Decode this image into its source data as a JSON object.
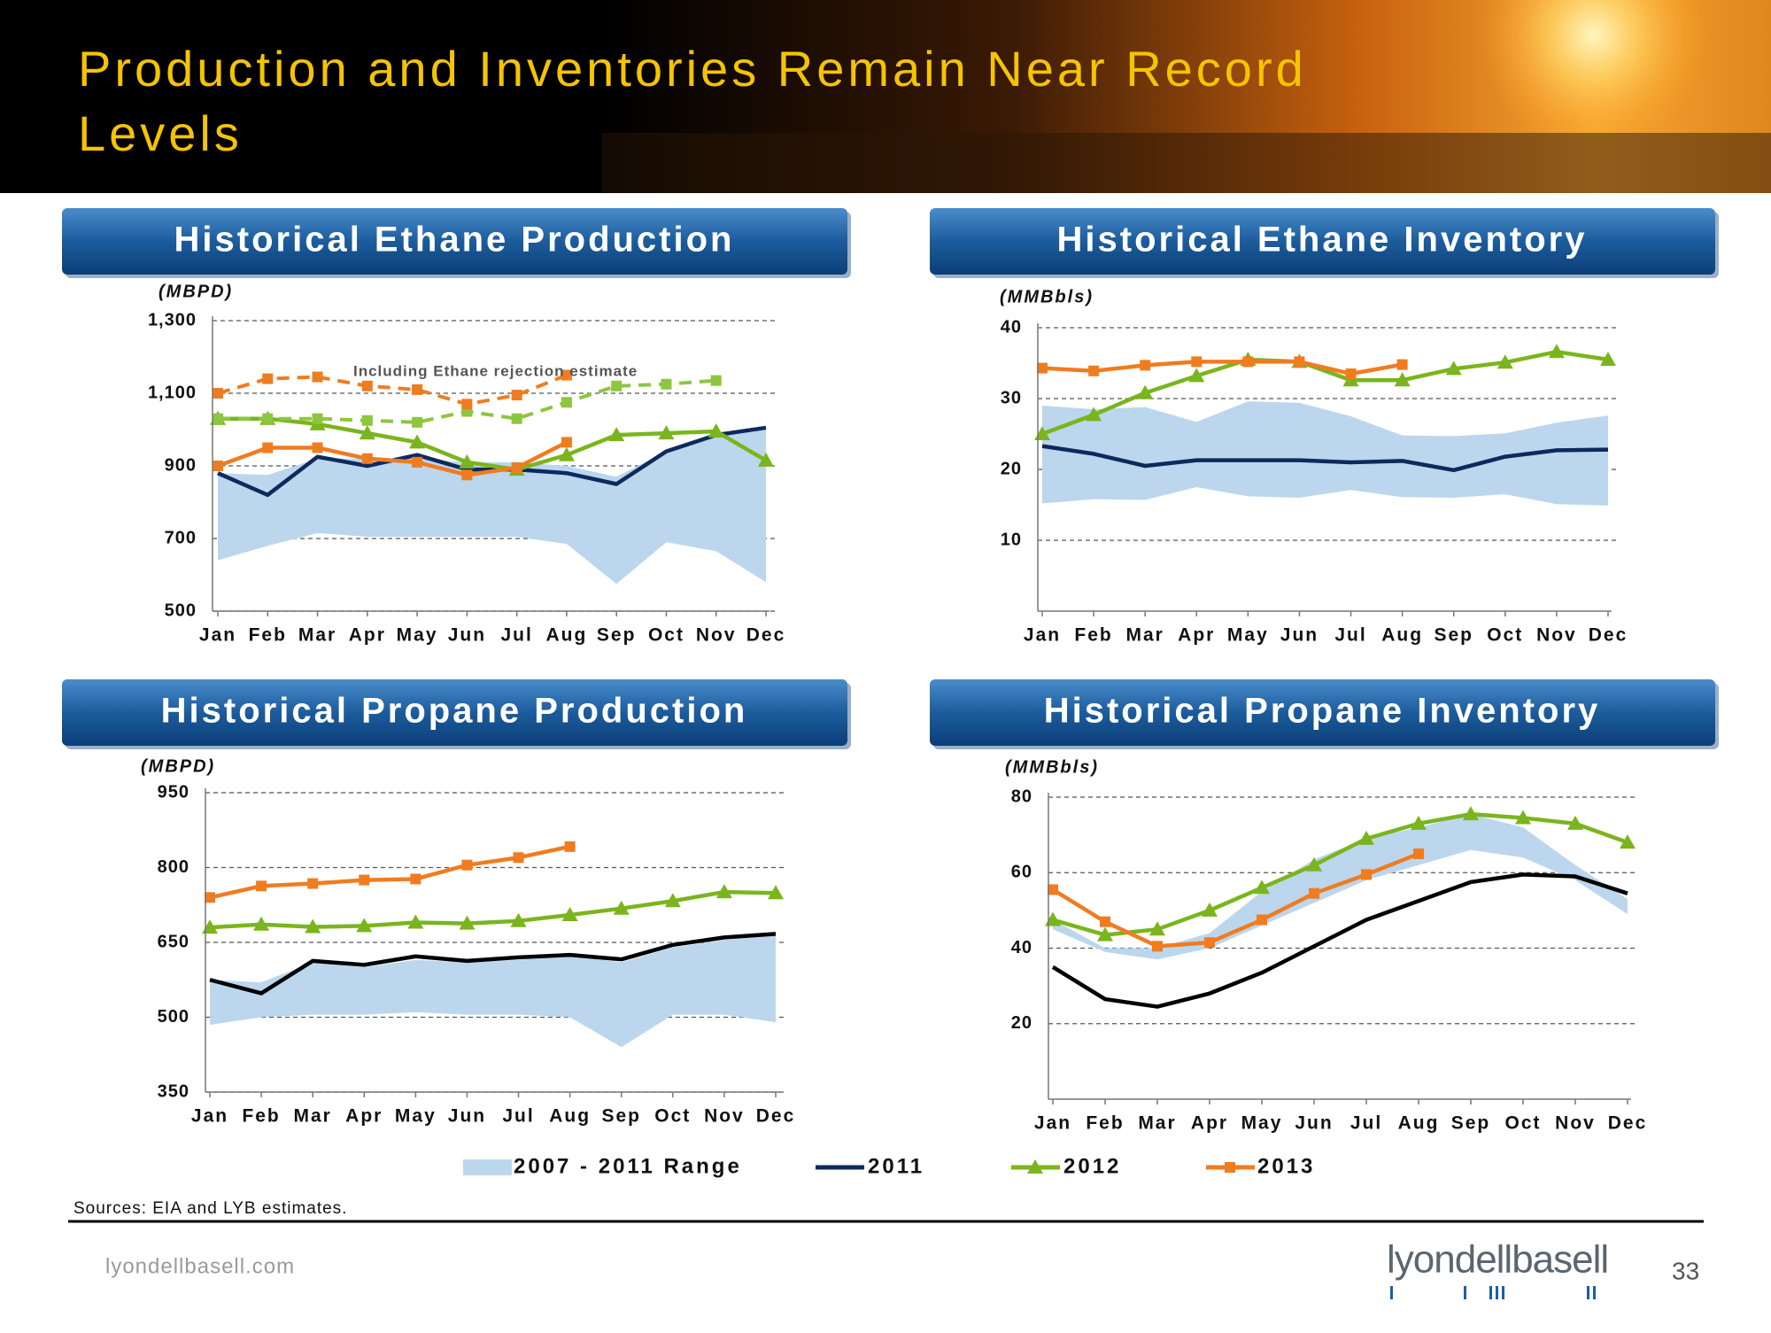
{
  "header": {
    "title_lines": [
      "Production and Inventories Remain Near Record",
      "Levels"
    ]
  },
  "chart_data": [
    {
      "type": "line",
      "title": "Historical Ethane Production",
      "y_label": "(MBPD)",
      "annotation": "Including Ethane rejection estimate",
      "categories": [
        "Jan",
        "Feb",
        "Mar",
        "Apr",
        "May",
        "Jun",
        "Jul",
        "Aug",
        "Sep",
        "Oct",
        "Nov",
        "Dec"
      ],
      "ylim": [
        500,
        1300
      ],
      "yticks": [
        500,
        700,
        900,
        {
          "value": 1100,
          "label": "1,100"
        },
        {
          "value": 1300,
          "label": "1,300"
        }
      ],
      "grid": true,
      "series": [
        {
          "name": "2007 - 2011 Range",
          "color": "#bcd6ee",
          "kind": "range",
          "low": [
            640,
            680,
            715,
            705,
            705,
            705,
            705,
            685,
            575,
            690,
            665,
            580
          ],
          "high": [
            880,
            875,
            920,
            920,
            920,
            910,
            910,
            900,
            870,
            940,
            985,
            1005
          ]
        },
        {
          "name": "2011",
          "color": "#0d2a5e",
          "values": [
            880,
            820,
            925,
            900,
            930,
            890,
            890,
            880,
            850,
            940,
            985,
            1005
          ]
        },
        {
          "name": "2012",
          "color": "#7ab51d",
          "marker": "triangle",
          "values": [
            1030,
            1030,
            1015,
            990,
            965,
            910,
            890,
            930,
            985,
            990,
            995,
            915
          ]
        },
        {
          "name": "2013",
          "color": "#f07c20",
          "marker": "square",
          "values": [
            900,
            950,
            950,
            920,
            910,
            875,
            895,
            965,
            null,
            null,
            null,
            null
          ]
        },
        {
          "color": "#8dc63f",
          "marker": "square",
          "dashed": true,
          "values": [
            1030,
            1030,
            1030,
            1025,
            1020,
            1050,
            1030,
            1075,
            1120,
            1125,
            1135,
            null
          ]
        },
        {
          "color": "#f07c20",
          "marker": "square",
          "dashed": true,
          "values": [
            1100,
            1140,
            1145,
            1120,
            1110,
            1070,
            1095,
            1150,
            null,
            null,
            null,
            null
          ]
        }
      ]
    },
    {
      "type": "line",
      "title": "Historical Ethane Inventory",
      "y_label": "(MMBbls)",
      "categories": [
        "Jan",
        "Feb",
        "Mar",
        "Apr",
        "May",
        "Jun",
        "Jul",
        "Aug",
        "Sep",
        "Oct",
        "Nov",
        "Dec"
      ],
      "ylim": [
        0,
        40
      ],
      "yticks": [
        10,
        20,
        30,
        40
      ],
      "grid": true,
      "series": [
        {
          "color": "#bcd6ee",
          "kind": "range",
          "low": [
            15.2,
            15.8,
            15.7,
            17.5,
            16.2,
            16.0,
            17.1,
            16.1,
            16.0,
            16.5,
            15.1,
            14.9
          ],
          "high": [
            29,
            28.5,
            28.8,
            26.7,
            29.6,
            29.4,
            27.5,
            24.8,
            24.7,
            25.1,
            26.6,
            27.6
          ]
        },
        {
          "color": "#0d2a5e",
          "values": [
            23.3,
            22.2,
            20.5,
            21.3,
            21.3,
            21.3,
            21,
            21.2,
            19.9,
            21.8,
            22.7,
            22.8
          ]
        },
        {
          "color": "#7ab51d",
          "marker": "triangle",
          "values": [
            25,
            27.7,
            30.8,
            33.2,
            35.5,
            35.2,
            32.6,
            32.6,
            34.2,
            35.1,
            36.6,
            35.5
          ]
        },
        {
          "color": "#f07c20",
          "marker": "square",
          "values": [
            34.3,
            33.9,
            34.7,
            35.2,
            35.2,
            35.2,
            33.5,
            34.8,
            null,
            null,
            null,
            null
          ]
        }
      ]
    },
    {
      "type": "line",
      "title": "Historical Propane Production",
      "y_label": "(MBPD)",
      "categories": [
        "Jan",
        "Feb",
        "Mar",
        "Apr",
        "May",
        "Jun",
        "Jul",
        "Aug",
        "Sep",
        "Oct",
        "Nov",
        "Dec"
      ],
      "ylim": [
        350,
        950
      ],
      "yticks": [
        350,
        500,
        650,
        800,
        950
      ],
      "grid": true,
      "series": [
        {
          "color": "#bcd6ee",
          "kind": "range",
          "low": [
            485,
            500,
            505,
            505,
            510,
            505,
            505,
            500,
            440,
            505,
            505,
            490
          ],
          "high": [
            575,
            570,
            610,
            600,
            615,
            610,
            615,
            625,
            610,
            640,
            655,
            665
          ]
        },
        {
          "color": "#000000",
          "values": [
            575,
            548,
            613,
            605,
            622,
            613,
            620,
            625,
            616,
            645,
            660,
            667
          ]
        },
        {
          "color": "#7ab51d",
          "marker": "triangle",
          "values": [
            680,
            686,
            681,
            683,
            690,
            688,
            693,
            705,
            718,
            733,
            751,
            749
          ]
        },
        {
          "color": "#f07c20",
          "marker": "square",
          "values": [
            740,
            763,
            768,
            775,
            777,
            805,
            820,
            842,
            null,
            null,
            null,
            null
          ]
        }
      ]
    },
    {
      "type": "line",
      "title": "Historical Propane Inventory",
      "y_label": "(MMBbls)",
      "categories": [
        "Jan",
        "Feb",
        "Mar",
        "Apr",
        "May",
        "Jun",
        "Jul",
        "Aug",
        "Sep",
        "Oct",
        "Nov",
        "Dec"
      ],
      "ylim": [
        0,
        80
      ],
      "yticks": [
        20,
        40,
        60,
        80
      ],
      "grid": true,
      "series": [
        {
          "color": "#bcd6ee",
          "kind": "range",
          "low": [
            45,
            39,
            37,
            40,
            46,
            52,
            58,
            62,
            66,
            64,
            58,
            49
          ],
          "high": [
            47.5,
            40,
            40,
            44,
            55,
            63.5,
            69,
            72,
            75.5,
            72,
            62,
            53
          ]
        },
        {
          "color": "#000000",
          "values": [
            35,
            26.5,
            24.5,
            28,
            33.5,
            40.5,
            47.5,
            52.5,
            57.5,
            59.5,
            59,
            54.5
          ]
        },
        {
          "color": "#7ab51d",
          "marker": "triangle",
          "values": [
            47.5,
            43.5,
            45,
            50,
            56,
            62,
            69,
            73,
            75.5,
            74.5,
            73,
            68
          ]
        },
        {
          "color": "#f07c20",
          "marker": "square",
          "values": [
            55.5,
            47,
            40.5,
            41.5,
            47.5,
            54.5,
            59.5,
            65,
            null,
            null,
            null,
            null
          ]
        }
      ]
    }
  ],
  "footer": {
    "sources": "Sources: EIA and LYB estimates.",
    "website": "lyondellbasell.com",
    "logo": "lyondellbasell",
    "page": "33"
  }
}
